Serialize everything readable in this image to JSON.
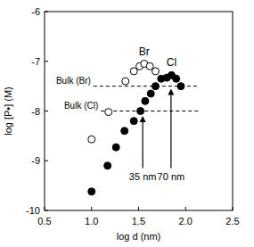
{
  "chart_data": {
    "type": "scatter",
    "x_label": "log d (nm)",
    "y_label": "log [P•] (M)",
    "xlim": [
      0.5,
      2.5
    ],
    "ylim": [
      -10,
      -6
    ],
    "xticks": [
      0.5,
      {
        "value": 1,
        "label": "1.0"
      },
      1.5,
      {
        "value": 2,
        "label": "2.0"
      },
      2.5
    ],
    "yticks": [
      -10,
      -9,
      -8,
      -7,
      -6
    ],
    "grid": false,
    "series": [
      {
        "name": "Br",
        "color": "#000000",
        "marker": "open-circle",
        "x": [
          1.0,
          1.18,
          1.36,
          1.45,
          1.51,
          1.56,
          1.62,
          1.68
        ],
        "values": [
          -8.57,
          -8.02,
          -7.4,
          -7.2,
          -7.1,
          -7.05,
          -7.1,
          -7.2
        ]
      },
      {
        "name": "Cl",
        "color": "#000000",
        "marker": "circle",
        "x": [
          1.0,
          1.17,
          1.26,
          1.35,
          1.45,
          1.52,
          1.57,
          1.63,
          1.68,
          1.74,
          1.8,
          1.85,
          1.9,
          1.95
        ],
        "values": [
          -9.62,
          -9.1,
          -8.73,
          -8.4,
          -8.2,
          -8.0,
          -7.8,
          -7.65,
          -7.5,
          -7.35,
          -7.33,
          -7.28,
          -7.35,
          -7.5
        ]
      }
    ],
    "reference_lines": [
      {
        "label": "Bulk (Br)",
        "y": -7.5,
        "x": [
          1.02,
          2.12
        ],
        "line_style": "dashed"
      },
      {
        "label": "Bulk (Cl)",
        "y": -8.0,
        "x": [
          1.1,
          2.15
        ],
        "line_style": "dashed"
      }
    ],
    "arrows": [
      {
        "label": "35 nm",
        "x": 1.544,
        "y": [
          -9.15,
          -8.1
        ]
      },
      {
        "label": "70 nm",
        "x": 1.845,
        "y": [
          -9.15,
          -7.55
        ]
      }
    ]
  }
}
